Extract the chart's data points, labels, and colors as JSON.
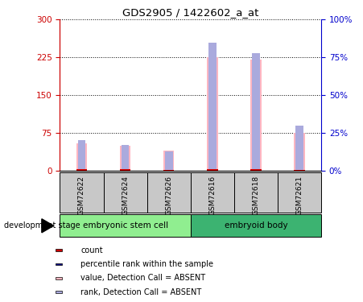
{
  "title": "GDS2905 / 1422602_a_at",
  "samples": [
    "GSM72622",
    "GSM72624",
    "GSM72626",
    "GSM72616",
    "GSM72618",
    "GSM72621"
  ],
  "groups": [
    {
      "name": "embryonic stem cell",
      "indices": [
        0,
        1,
        2
      ],
      "color": "#90EE90"
    },
    {
      "name": "embryoid body",
      "indices": [
        3,
        4,
        5
      ],
      "color": "#3CB371"
    }
  ],
  "value_absent": [
    55,
    50,
    40,
    225,
    220,
    75
  ],
  "rank_absent_pct": [
    20,
    17,
    13,
    85,
    78,
    30
  ],
  "count_values": [
    2,
    2,
    1,
    2,
    2,
    1
  ],
  "left_ylim": [
    0,
    300
  ],
  "right_ylim": [
    0,
    100
  ],
  "left_yticks": [
    0,
    75,
    150,
    225,
    300
  ],
  "right_yticks": [
    0,
    25,
    50,
    75,
    100
  ],
  "right_yticklabels": [
    "0%",
    "25%",
    "50%",
    "75%",
    "100%"
  ],
  "color_value_absent": "#FFB6C1",
  "color_rank_absent": "#AAAADD",
  "color_count": "#CC0000",
  "color_rank_present": "#00008B",
  "bg_color_samples": "#C8C8C8",
  "bg_color_esc": "#90EE90",
  "bg_color_eb": "#3CB371",
  "left_axis_color": "#CC0000",
  "right_axis_color": "#0000CC",
  "legend_items": [
    {
      "label": "count",
      "color": "#CC0000"
    },
    {
      "label": "percentile rank within the sample",
      "color": "#00008B"
    },
    {
      "label": "value, Detection Call = ABSENT",
      "color": "#FFB6C1"
    },
    {
      "label": "rank, Detection Call = ABSENT",
      "color": "#AAAADD"
    }
  ],
  "bar_width": 0.25,
  "rank_bar_width": 0.18
}
